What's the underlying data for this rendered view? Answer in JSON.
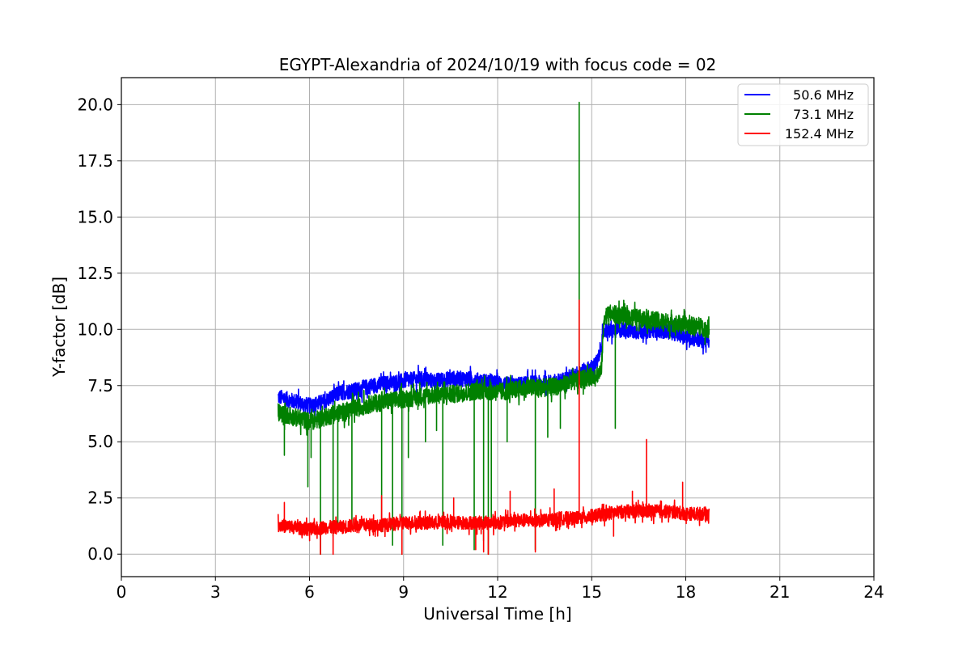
{
  "chart_data": {
    "type": "line",
    "title": "EGYPT-Alexandria of 2024/10/19 with focus code = 02",
    "xlabel": "Universal Time [h]",
    "ylabel": "Y-factor [dB]",
    "xlim": [
      0,
      24
    ],
    "ylim": [
      -1.0,
      21.2
    ],
    "xticks": [
      0,
      3,
      6,
      9,
      12,
      15,
      18,
      21,
      24
    ],
    "yticks": [
      0.0,
      2.5,
      5.0,
      7.5,
      10.0,
      12.5,
      15.0,
      17.5,
      20.0
    ],
    "xtick_labels": [
      "0",
      "3",
      "6",
      "9",
      "12",
      "15",
      "18",
      "21",
      "24"
    ],
    "ytick_labels": [
      "0.0",
      "2.5",
      "5.0",
      "7.5",
      "10.0",
      "12.5",
      "15.0",
      "17.5",
      "20.0"
    ],
    "grid": true,
    "legend_position": "top-right",
    "series": [
      {
        "name": "50.6 MHz",
        "color": "#0000ff",
        "x": [
          5.0,
          5.5,
          6.0,
          6.5,
          7.0,
          7.5,
          8.0,
          8.5,
          9.0,
          9.5,
          10.0,
          10.5,
          11.0,
          11.5,
          12.0,
          12.5,
          13.0,
          13.5,
          14.0,
          14.5,
          15.0,
          15.2,
          15.4,
          15.6,
          16.0,
          16.5,
          17.0,
          17.5,
          18.0,
          18.5,
          18.75
        ],
        "values": [
          7.0,
          6.8,
          6.6,
          6.8,
          7.2,
          7.3,
          7.5,
          7.6,
          7.7,
          7.8,
          7.7,
          7.8,
          7.8,
          7.7,
          7.6,
          7.5,
          7.6,
          7.6,
          7.7,
          8.0,
          8.3,
          8.6,
          10.0,
          9.9,
          10.0,
          9.9,
          10.0,
          9.9,
          9.7,
          9.5,
          9.5
        ],
        "noise": 0.35
      },
      {
        "name": "73.1 MHz",
        "color": "#008000",
        "x": [
          5.0,
          5.5,
          6.0,
          6.5,
          7.0,
          7.5,
          8.0,
          8.5,
          9.0,
          9.5,
          10.0,
          10.5,
          11.0,
          11.5,
          12.0,
          12.5,
          13.0,
          13.5,
          14.0,
          14.5,
          15.0,
          15.3,
          15.4,
          15.6,
          16.0,
          16.5,
          17.0,
          17.5,
          18.0,
          18.5,
          18.75
        ],
        "values": [
          6.3,
          6.1,
          5.9,
          6.1,
          6.3,
          6.5,
          6.7,
          6.8,
          6.9,
          7.0,
          7.1,
          7.1,
          7.2,
          7.3,
          7.2,
          7.3,
          7.4,
          7.4,
          7.5,
          7.7,
          7.9,
          8.1,
          10.6,
          10.7,
          10.6,
          10.5,
          10.4,
          10.3,
          10.2,
          10.1,
          10.0
        ],
        "noise": 0.4,
        "dips": [
          [
            5.2,
            4.4
          ],
          [
            5.95,
            3.0
          ],
          [
            6.05,
            4.3
          ],
          [
            6.35,
            0.0
          ],
          [
            6.75,
            0.8
          ],
          [
            6.9,
            1.2
          ],
          [
            7.35,
            1.4
          ],
          [
            8.3,
            1.0
          ],
          [
            8.65,
            0.4
          ],
          [
            8.95,
            0.0
          ],
          [
            9.15,
            4.3
          ],
          [
            9.7,
            5.0
          ],
          [
            10.05,
            5.5
          ],
          [
            10.25,
            0.4
          ],
          [
            11.25,
            0.2
          ],
          [
            11.55,
            0.6
          ],
          [
            11.7,
            0.0
          ],
          [
            11.8,
            1.5
          ],
          [
            12.3,
            5.0
          ],
          [
            13.2,
            0.2
          ],
          [
            13.6,
            5.2
          ],
          [
            14.0,
            5.6
          ],
          [
            15.75,
            5.6
          ]
        ],
        "spikes": [
          [
            14.6,
            20.1
          ]
        ]
      },
      {
        "name": "152.4 MHz",
        "color": "#ff0000",
        "x": [
          5.0,
          5.5,
          6.0,
          6.5,
          7.0,
          7.5,
          8.0,
          8.5,
          9.0,
          9.5,
          10.0,
          10.5,
          11.0,
          11.5,
          12.0,
          12.5,
          13.0,
          13.5,
          14.0,
          14.5,
          15.0,
          15.5,
          16.0,
          16.5,
          17.0,
          17.5,
          18.0,
          18.5,
          18.75
        ],
        "values": [
          1.3,
          1.2,
          1.1,
          1.2,
          1.2,
          1.3,
          1.3,
          1.3,
          1.4,
          1.4,
          1.4,
          1.4,
          1.4,
          1.4,
          1.4,
          1.5,
          1.5,
          1.5,
          1.6,
          1.6,
          1.7,
          1.8,
          1.9,
          1.9,
          1.9,
          1.9,
          1.8,
          1.8,
          1.8
        ],
        "noise": 0.3,
        "dips": [
          [
            6.0,
            0.6
          ],
          [
            6.35,
            0.0
          ],
          [
            6.75,
            0.0
          ],
          [
            8.95,
            0.0
          ],
          [
            11.3,
            0.2
          ],
          [
            11.55,
            0.1
          ],
          [
            11.7,
            0.0
          ],
          [
            13.2,
            0.1
          ],
          [
            15.7,
            0.8
          ]
        ],
        "spikes": [
          [
            5.2,
            2.3
          ],
          [
            8.3,
            2.6
          ],
          [
            10.6,
            2.5
          ],
          [
            12.4,
            2.8
          ],
          [
            13.8,
            2.9
          ],
          [
            14.6,
            11.3
          ],
          [
            16.3,
            2.8
          ],
          [
            16.75,
            5.1
          ],
          [
            17.9,
            3.2
          ]
        ]
      }
    ]
  }
}
